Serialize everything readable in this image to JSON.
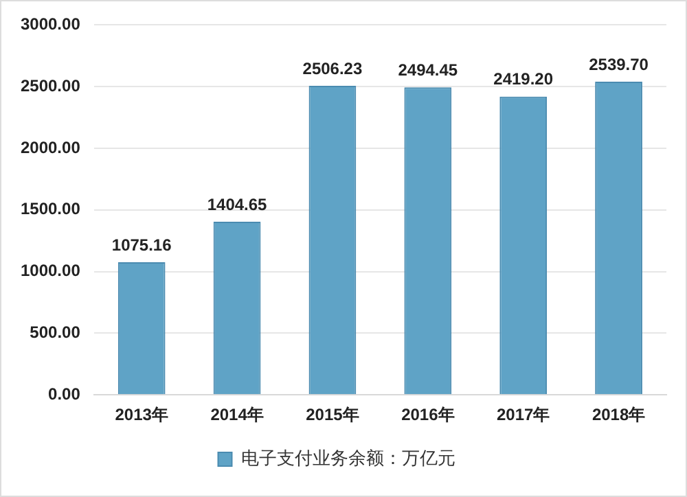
{
  "chart_data": {
    "type": "bar",
    "categories": [
      "2013年",
      "2014年",
      "2015年",
      "2016年",
      "2017年",
      "2018年"
    ],
    "series": [
      {
        "name": "电子支付业务余额：万亿元",
        "color": "#5fa3c6",
        "values": [
          1075.16,
          1404.65,
          2506.23,
          2494.45,
          2419.2,
          2539.7
        ],
        "value_labels": [
          "1075.16",
          "1404.65",
          "2506.23",
          "2494.45",
          "2419.20",
          "2539.70"
        ]
      }
    ],
    "ylim": [
      0,
      3000
    ],
    "yticks": [
      {
        "value": 0,
        "label": "0.00"
      },
      {
        "value": 500,
        "label": "500.00"
      },
      {
        "value": 1000,
        "label": "1000.00"
      },
      {
        "value": 1500,
        "label": "1500.00"
      },
      {
        "value": 2000,
        "label": "2000.00"
      },
      {
        "value": 2500,
        "label": "2500.00"
      },
      {
        "value": 3000,
        "label": "3000.00"
      }
    ],
    "grid": "y",
    "legend": "bottom"
  }
}
